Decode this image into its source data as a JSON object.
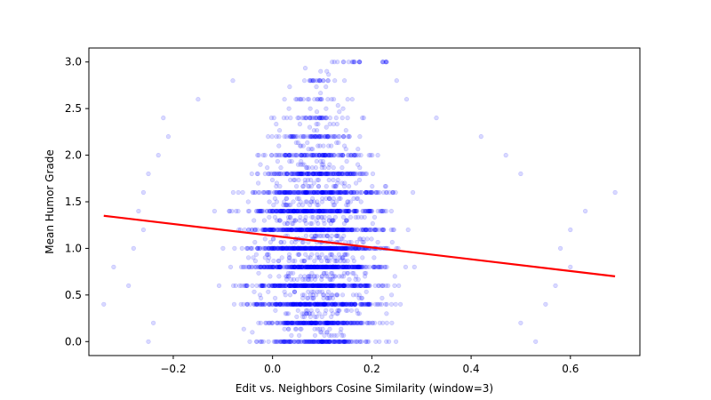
{
  "chart_data": {
    "type": "scatter",
    "title": "",
    "xlabel": "Edit vs. Neighbors Cosine Similarity (window=3)",
    "ylabel": "Mean Humor Grade",
    "xlim": [
      -0.37,
      0.74
    ],
    "ylim": [
      -0.15,
      3.15
    ],
    "x_ticks": [
      -0.2,
      0.0,
      0.2,
      0.4,
      0.6
    ],
    "x_tick_labels": [
      "−0.2",
      "0.0",
      "0.2",
      "0.4",
      "0.6"
    ],
    "y_ticks": [
      0.0,
      0.5,
      1.0,
      1.5,
      2.0,
      2.5,
      3.0
    ],
    "y_tick_labels": [
      "0.0",
      "0.5",
      "1.0",
      "1.5",
      "2.0",
      "2.5",
      "3.0"
    ],
    "grid": false,
    "legend": "none",
    "point_color": "#0000ff",
    "point_alpha": 0.15,
    "trend_color": "#ff0000",
    "point_rows": [
      {
        "y": 0.0,
        "x_min": -0.25,
        "x_max": 0.53
      },
      {
        "y": 0.2,
        "x_min": -0.24,
        "x_max": 0.5
      },
      {
        "y": 0.4,
        "x_min": -0.34,
        "x_max": 0.55
      },
      {
        "y": 0.6,
        "x_min": -0.29,
        "x_max": 0.57
      },
      {
        "y": 0.8,
        "x_min": -0.32,
        "x_max": 0.6
      },
      {
        "y": 1.0,
        "x_min": -0.28,
        "x_max": 0.58
      },
      {
        "y": 1.2,
        "x_min": -0.26,
        "x_max": 0.6
      },
      {
        "y": 1.4,
        "x_min": -0.27,
        "x_max": 0.63
      },
      {
        "y": 1.6,
        "x_min": -0.26,
        "x_max": 0.69
      },
      {
        "y": 1.8,
        "x_min": -0.25,
        "x_max": 0.5
      },
      {
        "y": 2.0,
        "x_min": -0.23,
        "x_max": 0.47
      },
      {
        "y": 2.2,
        "x_min": -0.21,
        "x_max": 0.42
      },
      {
        "y": 2.4,
        "x_min": -0.22,
        "x_max": 0.33
      },
      {
        "y": 2.6,
        "x_min": -0.15,
        "x_max": 0.27
      },
      {
        "y": 2.8,
        "x_min": -0.08,
        "x_max": 0.25
      },
      {
        "y": 3.0,
        "x_min": 0.12,
        "x_max": 0.23
      }
    ],
    "trend_line": {
      "x": [
        -0.34,
        0.69
      ],
      "y": [
        1.35,
        0.7
      ]
    }
  }
}
